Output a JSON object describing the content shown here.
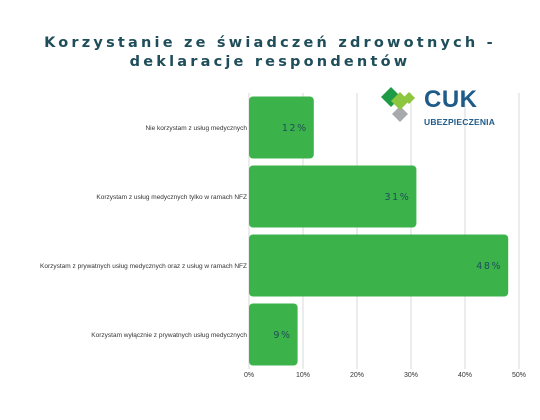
{
  "chart_data": {
    "type": "bar",
    "orientation": "horizontal",
    "title_lines": [
      "Korzystanie ze świadczeń zdrowotnych -",
      "deklaracje respondentów"
    ],
    "categories": [
      "Nie korzystam z usług medycznych",
      "Korzystam z usług medycznych tylko w ramach NFZ",
      "Korzystam z prywatnych usług medycznych oraz z usług w ramach NFZ",
      "Korzystam wyłącznie z prywatnych usług medycznych"
    ],
    "values": [
      12,
      31,
      48,
      9
    ],
    "value_labels": [
      "12%",
      "31%",
      "48%",
      "9%"
    ],
    "xlim": [
      0,
      50
    ],
    "x_ticks": [
      0,
      10,
      20,
      30,
      40,
      50
    ],
    "x_tick_labels": [
      "0%",
      "10%",
      "20%",
      "30%",
      "40%",
      "50%"
    ],
    "grid": true,
    "bar_color": "#3bb34a",
    "grid_color": "#d9d9d9"
  },
  "logo": {
    "name": "CUK",
    "subtitle": "UBEZPIECZENIA",
    "text_color": "#1e5b88",
    "diamond_colors": [
      "#1f9a45",
      "#8dc63f",
      "#a7a9ac"
    ]
  }
}
